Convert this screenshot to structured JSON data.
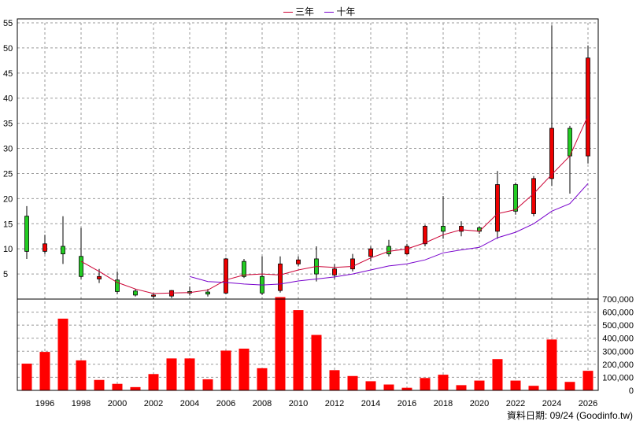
{
  "chart_data": {
    "type": "candlestick",
    "legend": [
      {
        "name": "三年",
        "color": "#cc0033"
      },
      {
        "name": "十年",
        "color": "#7700cc"
      }
    ],
    "price_axis": {
      "ylim": [
        0,
        55
      ],
      "ticks": [
        5,
        10,
        15,
        20,
        25,
        30,
        35,
        40,
        45,
        50,
        55
      ]
    },
    "volume_axis": {
      "ylim": [
        0,
        700000
      ],
      "ticks": [
        "0",
        "100,000",
        "200,000",
        "300,000",
        "400,000",
        "500,000",
        "600,000",
        "700,000"
      ],
      "tick_values": [
        0,
        100000,
        200000,
        300000,
        400000,
        500000,
        600000,
        700000
      ]
    },
    "x_ticks": [
      "1996",
      "1998",
      "2000",
      "2002",
      "2004",
      "2006",
      "2008",
      "2010",
      "2012",
      "2014",
      "2016",
      "2018",
      "2020",
      "2022",
      "2024",
      "2026"
    ],
    "years": [
      1995,
      1996,
      1997,
      1998,
      1999,
      2000,
      2001,
      2002,
      2003,
      2004,
      2005,
      2006,
      2007,
      2008,
      2009,
      2010,
      2011,
      2012,
      2013,
      2014,
      2015,
      2016,
      2017,
      2018,
      2019,
      2020,
      2021,
      2022,
      2023,
      2024,
      2025,
      2026
    ],
    "candles": [
      {
        "o": 9.5,
        "h": 18.5,
        "l": 8.0,
        "c": 16.5
      },
      {
        "o": 11.0,
        "h": 12.8,
        "l": 9.0,
        "c": 9.5
      },
      {
        "o": 9.0,
        "h": 16.5,
        "l": 7.0,
        "c": 10.5
      },
      {
        "o": 4.5,
        "h": 14.2,
        "l": 4.0,
        "c": 8.5
      },
      {
        "o": 4.5,
        "h": 6.0,
        "l": 3.2,
        "c": 4.0
      },
      {
        "o": 1.5,
        "h": 5.5,
        "l": 1.0,
        "c": 3.8
      },
      {
        "o": 0.8,
        "h": 2.0,
        "l": 0.5,
        "c": 1.6
      },
      {
        "o": 0.8,
        "h": 1.2,
        "l": 0.1,
        "c": 0.6
      },
      {
        "o": 1.7,
        "h": 1.8,
        "l": 0.2,
        "c": 0.6
      },
      {
        "o": 1.2,
        "h": 2.5,
        "l": 0.7,
        "c": 1.5
      },
      {
        "o": 1.0,
        "h": 2.0,
        "l": 0.5,
        "c": 1.4
      },
      {
        "o": 8.0,
        "h": 8.2,
        "l": 1.0,
        "c": 1.2
      },
      {
        "o": 4.5,
        "h": 8.0,
        "l": 4.2,
        "c": 7.5
      },
      {
        "o": 1.2,
        "h": 8.5,
        "l": 0.8,
        "c": 4.5
      },
      {
        "o": 7.0,
        "h": 8.5,
        "l": 1.3,
        "c": 1.7
      },
      {
        "o": 7.8,
        "h": 8.5,
        "l": 6.5,
        "c": 7.0
      },
      {
        "o": 5.0,
        "h": 10.5,
        "l": 3.5,
        "c": 8.0
      },
      {
        "o": 6.0,
        "h": 7.0,
        "l": 4.0,
        "c": 4.8
      },
      {
        "o": 8.0,
        "h": 9.0,
        "l": 5.5,
        "c": 6.0
      },
      {
        "o": 10.0,
        "h": 10.5,
        "l": 7.5,
        "c": 8.5
      },
      {
        "o": 9.0,
        "h": 11.8,
        "l": 8.5,
        "c": 10.5
      },
      {
        "o": 10.5,
        "h": 11.0,
        "l": 8.8,
        "c": 9.0
      },
      {
        "o": 14.5,
        "h": 14.8,
        "l": 10.5,
        "c": 11.0
      },
      {
        "o": 13.5,
        "h": 20.5,
        "l": 12.0,
        "c": 14.5
      },
      {
        "o": 14.5,
        "h": 15.5,
        "l": 12.5,
        "c": 13.5
      },
      {
        "o": 13.5,
        "h": 14.5,
        "l": 13.0,
        "c": 14.2
      },
      {
        "o": 22.8,
        "h": 25.5,
        "l": 12.0,
        "c": 13.5
      },
      {
        "o": 17.5,
        "h": 23.2,
        "l": 16.8,
        "c": 22.8
      },
      {
        "o": 24.0,
        "h": 24.5,
        "l": 16.5,
        "c": 17.0
      },
      {
        "o": 34.0,
        "h": 54.5,
        "l": 22.5,
        "c": 24.0
      },
      {
        "o": 28.5,
        "h": 34.5,
        "l": 21.0,
        "c": 34.0
      },
      {
        "o": 48.0,
        "h": 50.5,
        "l": 27.0,
        "c": 28.5
      }
    ],
    "ma3": [
      [
        1998,
        7.5
      ],
      [
        1999,
        5.5
      ],
      [
        2000,
        3.3
      ],
      [
        2001,
        2.0
      ],
      [
        2002,
        1.1
      ],
      [
        2003,
        1.2
      ],
      [
        2004,
        1.3
      ],
      [
        2005,
        1.8
      ],
      [
        2006,
        3.8
      ],
      [
        2007,
        4.8
      ],
      [
        2008,
        5.0
      ],
      [
        2009,
        4.8
      ],
      [
        2010,
        5.8
      ],
      [
        2011,
        6.5
      ],
      [
        2012,
        6.3
      ],
      [
        2013,
        6.5
      ],
      [
        2014,
        8.2
      ],
      [
        2015,
        9.5
      ],
      [
        2016,
        10.0
      ],
      [
        2017,
        11.2
      ],
      [
        2018,
        12.8
      ],
      [
        2019,
        13.8
      ],
      [
        2020,
        13.5
      ],
      [
        2021,
        17.0
      ],
      [
        2022,
        17.8
      ],
      [
        2023,
        21.0
      ],
      [
        2024,
        24.8
      ],
      [
        2025,
        28.5
      ],
      [
        2026,
        36.5
      ]
    ],
    "ma10": [
      [
        2004,
        4.5
      ],
      [
        2005,
        3.5
      ],
      [
        2006,
        3.3
      ],
      [
        2007,
        3.0
      ],
      [
        2008,
        2.8
      ],
      [
        2009,
        3.0
      ],
      [
        2010,
        3.6
      ],
      [
        2011,
        4.0
      ],
      [
        2012,
        4.4
      ],
      [
        2013,
        5.0
      ],
      [
        2014,
        5.8
      ],
      [
        2015,
        6.6
      ],
      [
        2016,
        7.0
      ],
      [
        2017,
        7.8
      ],
      [
        2018,
        9.2
      ],
      [
        2019,
        9.8
      ],
      [
        2020,
        10.3
      ],
      [
        2021,
        12.2
      ],
      [
        2022,
        13.3
      ],
      [
        2023,
        15.0
      ],
      [
        2024,
        17.5
      ],
      [
        2025,
        19.0
      ],
      [
        2026,
        23.0
      ]
    ],
    "volume": [
      205000,
      295000,
      550000,
      230000,
      80000,
      50000,
      25000,
      125000,
      245000,
      245000,
      85000,
      305000,
      320000,
      170000,
      715000,
      615000,
      425000,
      155000,
      110000,
      70000,
      45000,
      20000,
      95000,
      120000,
      40000,
      75000,
      240000,
      75000,
      35000,
      390000,
      65000,
      150000
    ]
  },
  "footer": "資料日期: 09/24  (Goodinfo.tw)"
}
